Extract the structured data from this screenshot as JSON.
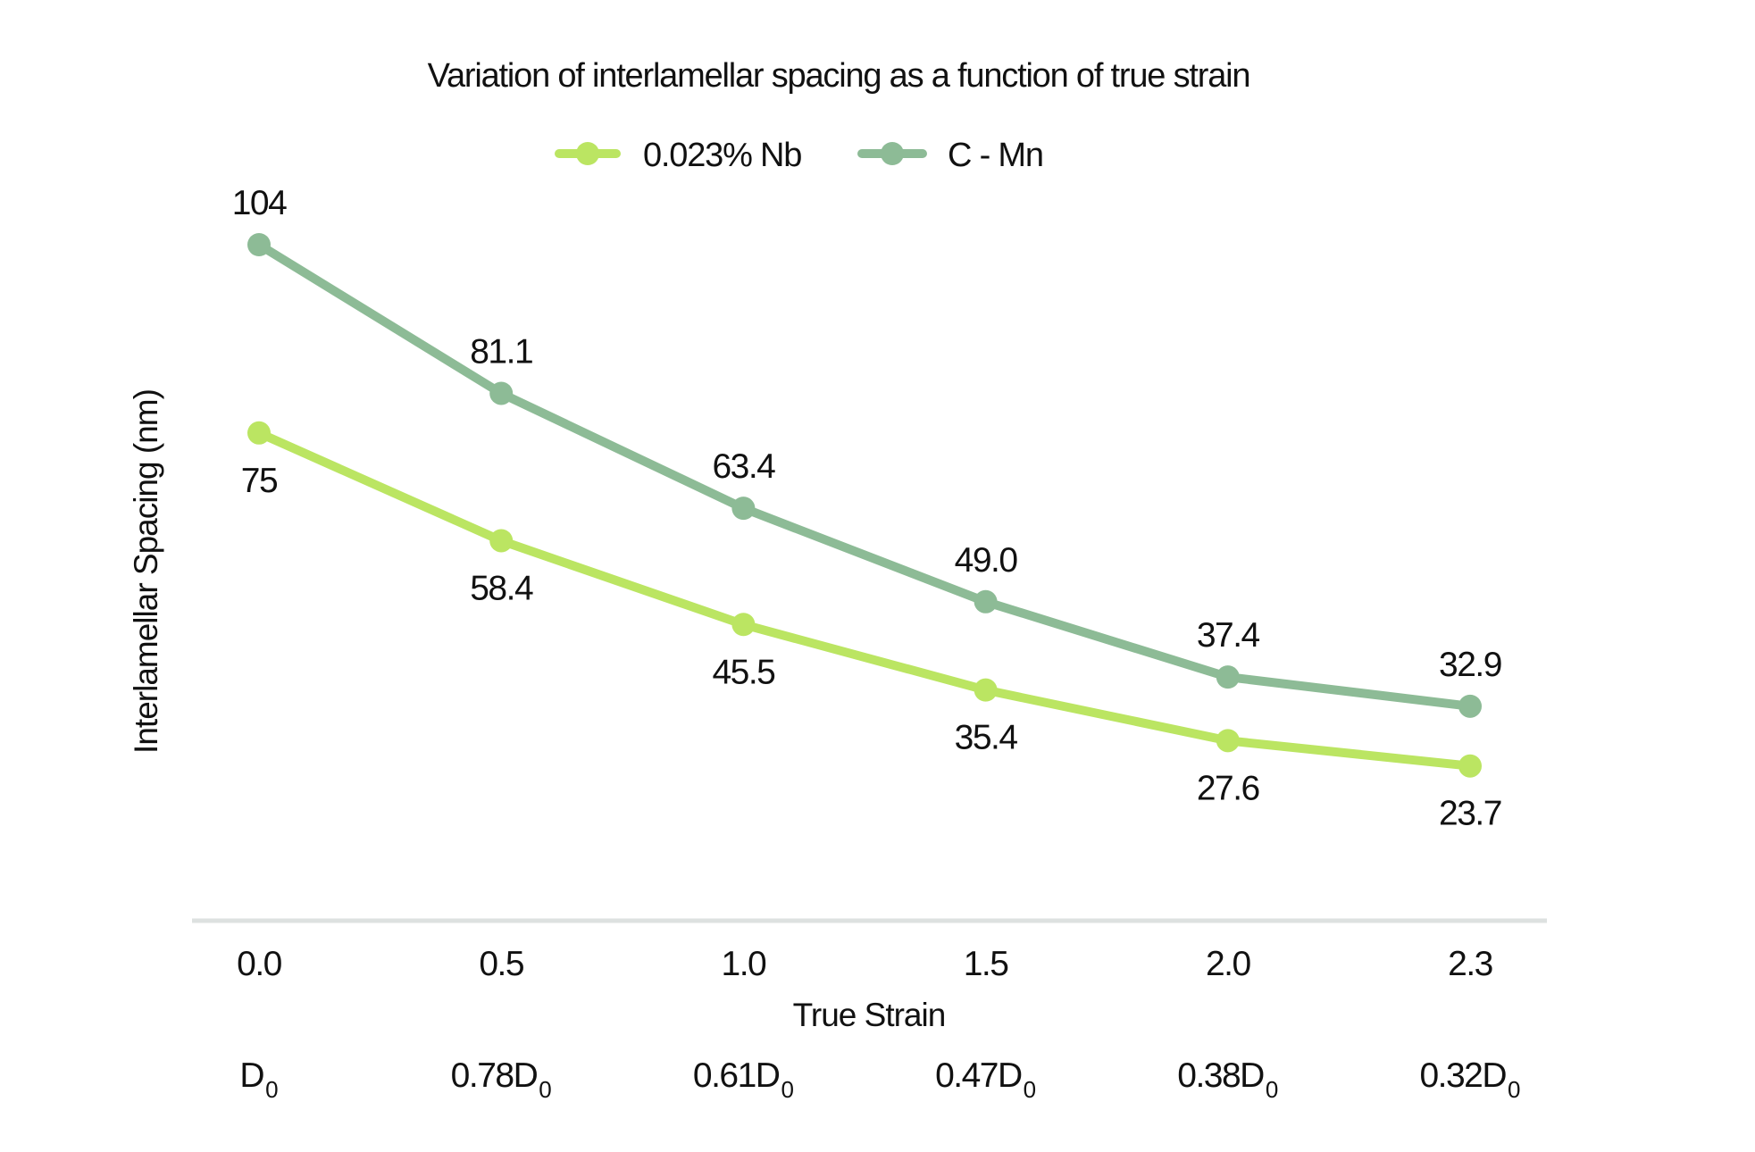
{
  "chart_data": {
    "type": "line",
    "title": "Variation of interlamellar spacing as a function of true strain",
    "xlabel": "True Strain",
    "ylabel": "Interlamellar Spacing (nm)",
    "categories": [
      "0.0",
      "0.5",
      "1.0",
      "1.5",
      "2.0",
      "2.3"
    ],
    "x": [
      0.0,
      0.5,
      1.0,
      1.5,
      2.0,
      2.3
    ],
    "secondary_x_labels": [
      {
        "main": "D",
        "sub": "0"
      },
      {
        "main": "0.78D",
        "sub": "0"
      },
      {
        "main": "0.61D",
        "sub": "0"
      },
      {
        "main": "0.47D",
        "sub": "0"
      },
      {
        "main": "0.38D",
        "sub": "0"
      },
      {
        "main": "0.32D",
        "sub": "0"
      }
    ],
    "ylim": [
      0,
      104
    ],
    "grid": false,
    "legend_position": "top-center",
    "series": [
      {
        "name": "0.023% Nb",
        "color": "#bbe562",
        "values": [
          75,
          58.4,
          45.5,
          35.4,
          27.6,
          23.7
        ],
        "labels": [
          "75",
          "58.4",
          "45.5",
          "35.4",
          "27.6",
          "23.7"
        ],
        "label_position": "below"
      },
      {
        "name": "C - Mn",
        "color": "#8dbb96",
        "values": [
          104,
          81.1,
          63.4,
          49.0,
          37.4,
          32.9
        ],
        "labels": [
          "104",
          "81.1",
          "63.4",
          "49.0",
          "37.4",
          "32.9"
        ],
        "label_position": "above"
      }
    ],
    "axis_color": "#dde1e0"
  }
}
